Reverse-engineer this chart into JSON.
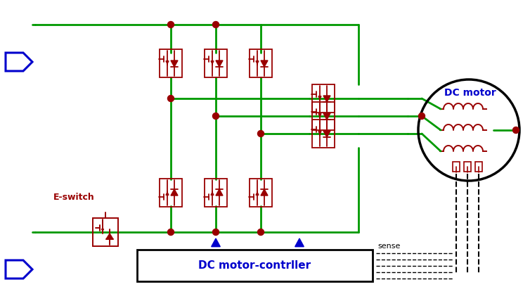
{
  "bg_color": "#ffffff",
  "green": "#009900",
  "dark_red": "#990000",
  "blue": "#0000cc",
  "black": "#000000",
  "dc_motor_label": "DC motor",
  "dc_controller_label": "DC motor-contrller",
  "eswitch_label": "E-switch",
  "sense_label": "sense",
  "figw": 7.54,
  "figh": 4.18,
  "dpi": 100
}
